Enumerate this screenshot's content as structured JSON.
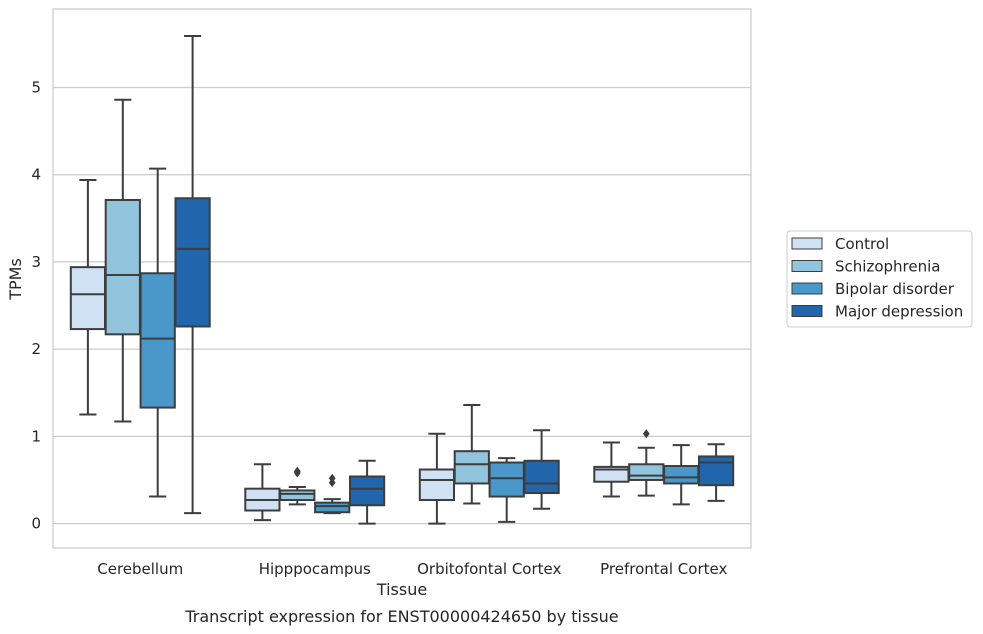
{
  "chart_data": {
    "type": "box",
    "title": "Transcript expression for ENST00000424650 by tissue",
    "xlabel": "Tissue",
    "ylabel": "TPMs",
    "ylim": [
      -0.28,
      5.9
    ],
    "yticks": [
      0,
      1,
      2,
      3,
      4,
      5
    ],
    "grid": "horizontal",
    "legend_position": "right",
    "categories": [
      "Cerebellum",
      "Hipppocampus",
      "Orbitofontal Cortex",
      "Prefrontal Cortex"
    ],
    "series": [
      {
        "name": "Control",
        "color": "#cfe1f2",
        "boxes": [
          {
            "whisker_low": 1.25,
            "q1": 2.23,
            "median": 2.63,
            "q3": 2.94,
            "whisker_high": 3.94,
            "outliers": []
          },
          {
            "whisker_low": 0.04,
            "q1": 0.15,
            "median": 0.27,
            "q3": 0.4,
            "whisker_high": 0.68,
            "outliers": []
          },
          {
            "whisker_low": 0.0,
            "q1": 0.27,
            "median": 0.5,
            "q3": 0.62,
            "whisker_high": 1.03,
            "outliers": []
          },
          {
            "whisker_low": 0.31,
            "q1": 0.48,
            "median": 0.62,
            "q3": 0.65,
            "whisker_high": 0.93,
            "outliers": []
          }
        ]
      },
      {
        "name": "Schizophrenia",
        "color": "#93c4de",
        "boxes": [
          {
            "whisker_low": 1.17,
            "q1": 2.17,
            "median": 2.85,
            "q3": 3.71,
            "whisker_high": 4.86,
            "outliers": []
          },
          {
            "whisker_low": 0.22,
            "q1": 0.27,
            "median": 0.34,
            "q3": 0.38,
            "whisker_high": 0.42,
            "outliers": [
              0.6,
              0.58
            ]
          },
          {
            "whisker_low": 0.23,
            "q1": 0.46,
            "median": 0.68,
            "q3": 0.83,
            "whisker_high": 1.36,
            "outliers": []
          },
          {
            "whisker_low": 0.32,
            "q1": 0.5,
            "median": 0.55,
            "q3": 0.68,
            "whisker_high": 0.87,
            "outliers": [
              1.03
            ]
          }
        ]
      },
      {
        "name": "Bipolar disorder",
        "color": "#4a98c9",
        "boxes": [
          {
            "whisker_low": 0.31,
            "q1": 1.33,
            "median": 2.12,
            "q3": 2.87,
            "whisker_high": 4.07,
            "outliers": []
          },
          {
            "whisker_low": 0.12,
            "q1": 0.13,
            "median": 0.2,
            "q3": 0.24,
            "whisker_high": 0.28,
            "outliers": [
              0.52,
              0.47
            ]
          },
          {
            "whisker_low": 0.02,
            "q1": 0.31,
            "median": 0.52,
            "q3": 0.7,
            "whisker_high": 0.75,
            "outliers": []
          },
          {
            "whisker_low": 0.22,
            "q1": 0.46,
            "median": 0.53,
            "q3": 0.66,
            "whisker_high": 0.9,
            "outliers": []
          }
        ]
      },
      {
        "name": "Major depression",
        "color": "#2166ac",
        "boxes": [
          {
            "whisker_low": 0.12,
            "q1": 2.26,
            "median": 3.15,
            "q3": 3.73,
            "whisker_high": 5.59,
            "outliers": []
          },
          {
            "whisker_low": 0.0,
            "q1": 0.21,
            "median": 0.4,
            "q3": 0.54,
            "whisker_high": 0.72,
            "outliers": []
          },
          {
            "whisker_low": 0.17,
            "q1": 0.35,
            "median": 0.46,
            "q3": 0.72,
            "whisker_high": 1.07,
            "outliers": []
          },
          {
            "whisker_low": 0.26,
            "q1": 0.44,
            "median": 0.7,
            "q3": 0.77,
            "whisker_high": 0.91,
            "outliers": []
          }
        ]
      }
    ]
  }
}
